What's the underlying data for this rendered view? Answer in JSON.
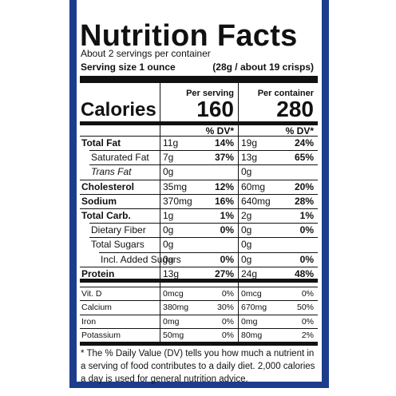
{
  "header": {
    "title": "Nutrition Facts",
    "servings": "About 2 servings per container",
    "serving_size_label": "Serving size 1 ounce",
    "serving_size_value": "(28g / about 19 crisps)"
  },
  "columns": {
    "per_serving": "Per serving",
    "per_container": "Per container",
    "dv": "% DV*"
  },
  "calories": {
    "label": "Calories",
    "per_serving": "160",
    "per_container": "280"
  },
  "nutrients": [
    [
      "Total Fat",
      "11g",
      "14%",
      "19g",
      "24%"
    ],
    [
      "Saturated Fat",
      "7g",
      "37%",
      "13g",
      "65%"
    ],
    [
      "Trans Fat",
      "0g",
      "",
      "0g",
      ""
    ],
    [
      "Cholesterol",
      "35mg",
      "12%",
      "60mg",
      "20%"
    ],
    [
      "Sodium",
      "370mg",
      "16%",
      "640mg",
      "28%"
    ],
    [
      "Total Carb.",
      "1g",
      "1%",
      "2g",
      "1%"
    ],
    [
      "Dietary Fiber",
      "0g",
      "0%",
      "0g",
      "0%"
    ],
    [
      "Total Sugars",
      "0g",
      "",
      "0g",
      ""
    ],
    [
      "Incl. Added Sugars",
      "0g",
      "0%",
      "0g",
      "0%"
    ],
    [
      "Protein",
      "13g",
      "27%",
      "24g",
      "48%"
    ]
  ],
  "vitamins": [
    [
      "Vit. D",
      "0mcg",
      "0%",
      "0mcg",
      "0%"
    ],
    [
      "Calcium",
      "380mg",
      "30%",
      "670mg",
      "50%"
    ],
    [
      "Iron",
      "0mg",
      "0%",
      "0mg",
      "0%"
    ],
    [
      "Potassium",
      "50mg",
      "0%",
      "80mg",
      "2%"
    ]
  ],
  "footnote": "* The % Daily Value (DV) tells you how much a nutrient in a serving of food contributes to a daily diet. 2,000 calories a day is used for general nutrition advice."
}
